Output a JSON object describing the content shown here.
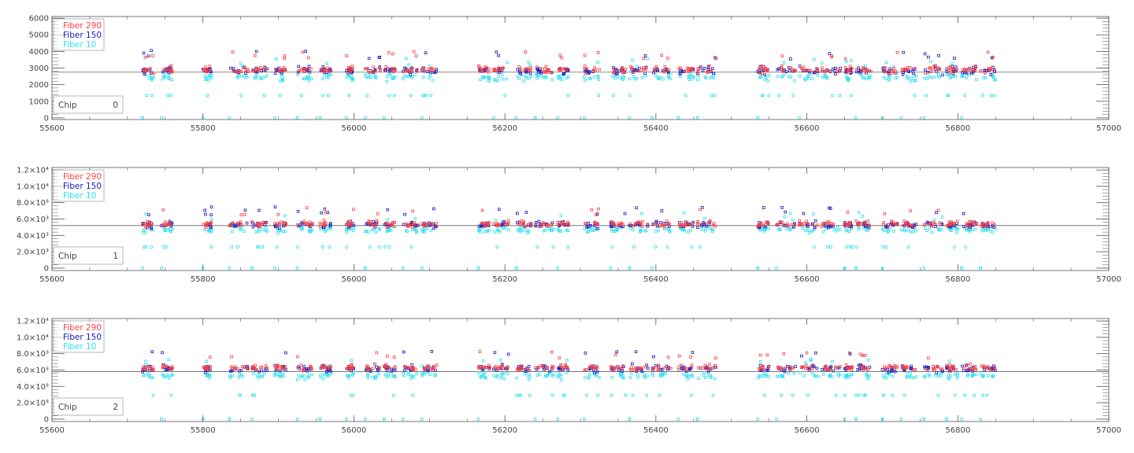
{
  "chart_data": [
    {
      "type": "scatter",
      "chip_label": "Chip",
      "chip_number": "0",
      "xlim": [
        55600,
        57000
      ],
      "ylim": [
        -100,
        6100
      ],
      "x_ticks": [
        55600,
        55800,
        56000,
        56200,
        56400,
        56600,
        56800,
        57000
      ],
      "x_tick_labels": [
        "55600",
        "55800",
        "56000",
        "56200",
        "56400",
        "56600",
        "56800",
        "57000"
      ],
      "y_ticks": [
        0,
        1000,
        2000,
        3000,
        4000,
        5000,
        6000
      ],
      "y_tick_labels": [
        "0",
        "1000",
        "2000",
        "3000",
        "4000",
        "5000",
        "6000"
      ],
      "y_tick_exponent": false,
      "reference_line": 2750,
      "legend_position": "top-left",
      "series": [
        {
          "name": "Fiber 290",
          "color": "#ff4040",
          "base": 2900,
          "spread": 500
        },
        {
          "name": "Fiber 150",
          "color": "#1a1ab8",
          "base": 2850,
          "spread": 550
        },
        {
          "name": "Fiber 10",
          "color": "#33e0f0",
          "base": 2450,
          "spread": 520
        }
      ]
    },
    {
      "type": "scatter",
      "chip_label": "Chip",
      "chip_number": "1",
      "xlim": [
        55600,
        57000
      ],
      "ylim": [
        -300,
        12300
      ],
      "x_ticks": [
        55600,
        55800,
        56000,
        56200,
        56400,
        56600,
        56800,
        57000
      ],
      "x_tick_labels": [
        "55600",
        "55800",
        "56000",
        "56200",
        "56400",
        "56600",
        "56800",
        "57000"
      ],
      "y_ticks": [
        0,
        2000,
        4000,
        6000,
        8000,
        10000,
        12000
      ],
      "y_tick_labels": [
        "0",
        "2.0×10³",
        "4.0×10³",
        "6.0×10³",
        "8.0×10³",
        "1.0×10⁴",
        "1.2×10⁴"
      ],
      "y_tick_exponent": true,
      "reference_line": 5200,
      "legend_position": "top-left",
      "series": [
        {
          "name": "Fiber 290",
          "color": "#ff4040",
          "base": 5400,
          "spread": 900
        },
        {
          "name": "Fiber 150",
          "color": "#1a1ab8",
          "base": 5300,
          "spread": 1000
        },
        {
          "name": "Fiber 10",
          "color": "#33e0f0",
          "base": 4700,
          "spread": 950
        }
      ]
    },
    {
      "type": "scatter",
      "chip_label": "Chip",
      "chip_number": "2",
      "xlim": [
        55600,
        57000
      ],
      "ylim": [
        -300,
        12300
      ],
      "x_ticks": [
        55600,
        55800,
        56000,
        56200,
        56400,
        56600,
        56800,
        57000
      ],
      "x_tick_labels": [
        "55600",
        "55800",
        "56000",
        "56200",
        "56400",
        "56600",
        "56800",
        "57000"
      ],
      "y_ticks": [
        0,
        2000,
        4000,
        6000,
        8000,
        10000,
        12000
      ],
      "y_tick_labels": [
        "0",
        "2.0×10³",
        "4.0×10³",
        "6.0×10³",
        "8.0×10³",
        "1.0×10⁴",
        "1.2×10⁴"
      ],
      "y_tick_exponent": true,
      "reference_line": 5800,
      "legend_position": "top-left",
      "series": [
        {
          "name": "Fiber 290",
          "color": "#ff4040",
          "base": 6300,
          "spread": 900
        },
        {
          "name": "Fiber 150",
          "color": "#1a1ab8",
          "base": 6200,
          "spread": 1000
        },
        {
          "name": "Fiber 10",
          "color": "#33e0f0",
          "base": 5300,
          "spread": 950
        }
      ]
    }
  ],
  "observation_epochs": [
    [
      55720,
      55735
    ],
    [
      55745,
      55760
    ],
    [
      55800,
      55812
    ],
    [
      55835,
      55860
    ],
    [
      55865,
      55885
    ],
    [
      55895,
      55910
    ],
    [
      55925,
      55945
    ],
    [
      55955,
      55970
    ],
    [
      55990,
      56000
    ],
    [
      56015,
      56035
    ],
    [
      56040,
      56055
    ],
    [
      56065,
      56085
    ],
    [
      56090,
      56110
    ],
    [
      56165,
      56180
    ],
    [
      56185,
      56205
    ],
    [
      56215,
      56235
    ],
    [
      56240,
      56265
    ],
    [
      56270,
      56285
    ],
    [
      56305,
      56325
    ],
    [
      56340,
      56360
    ],
    [
      56365,
      56390
    ],
    [
      56395,
      56420
    ],
    [
      56430,
      56450
    ],
    [
      56455,
      56480
    ],
    [
      56535,
      56550
    ],
    [
      56560,
      56585
    ],
    [
      56590,
      56615
    ],
    [
      56620,
      56645
    ],
    [
      56650,
      56660
    ],
    [
      56665,
      56685
    ],
    [
      56700,
      56720
    ],
    [
      56725,
      56745
    ],
    [
      56755,
      56780
    ],
    [
      56785,
      56800
    ],
    [
      56805,
      56825
    ],
    [
      56830,
      56850
    ]
  ]
}
